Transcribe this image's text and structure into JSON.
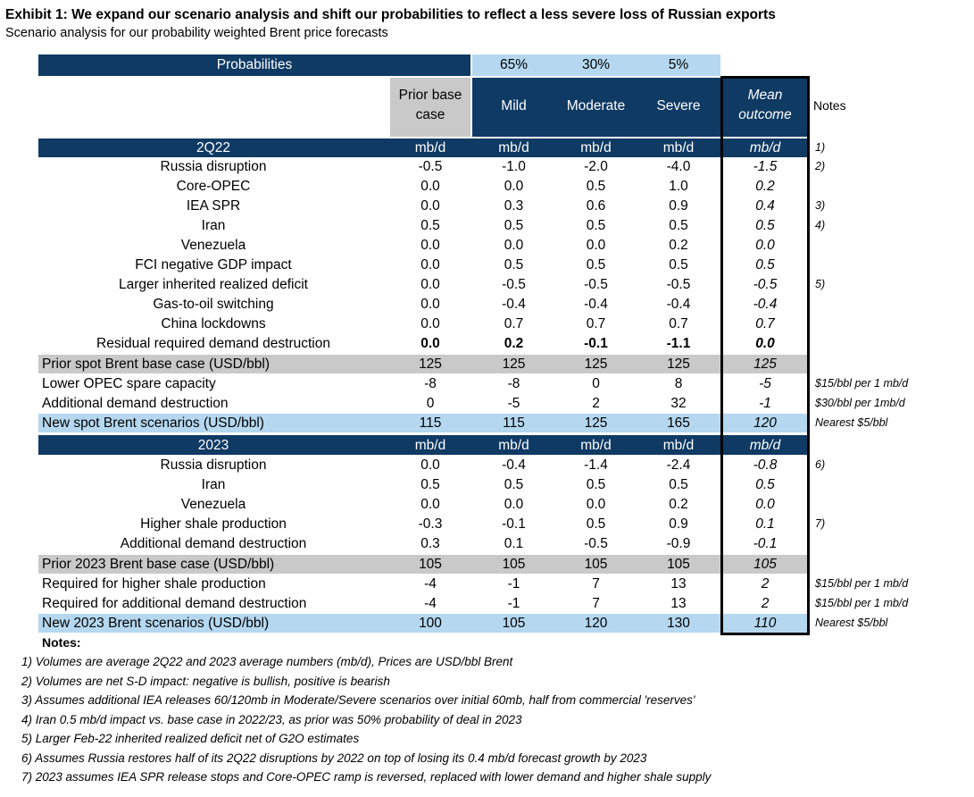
{
  "exhibit": {
    "title": "Exhibit 1: We expand our scenario analysis and shift our probabilities to reflect a less severe loss of Russian exports",
    "subtitle": "Scenario analysis for our probability weighted Brent price forecasts"
  },
  "header": {
    "probabilities_label": "Probabilities",
    "probs": [
      "65%",
      "30%",
      "5%"
    ],
    "prior_base_line1": "Prior base",
    "prior_base_line2": "case",
    "mild": "Mild",
    "moderate": "Moderate",
    "severe": "Severe",
    "mean_line1": "Mean",
    "mean_line2": "outcome",
    "notes": "Notes"
  },
  "section_2q22": {
    "label": "2Q22",
    "units": [
      "mb/d",
      "mb/d",
      "mb/d",
      "mb/d",
      "mb/d"
    ],
    "note": "1)",
    "rows": [
      {
        "label": "Russia disruption",
        "values": [
          "-0.5",
          "-1.0",
          "-2.0",
          "-4.0",
          "-1.5"
        ],
        "note": "2)"
      },
      {
        "label": "Core-OPEC",
        "values": [
          "0.0",
          "0.0",
          "0.5",
          "1.0",
          "0.2"
        ],
        "note": ""
      },
      {
        "label": "IEA SPR",
        "values": [
          "0.0",
          "0.3",
          "0.6",
          "0.9",
          "0.4"
        ],
        "note": "3)"
      },
      {
        "label": "Iran",
        "values": [
          "0.5",
          "0.5",
          "0.5",
          "0.5",
          "0.5"
        ],
        "note": "4)"
      },
      {
        "label": "Venezuela",
        "values": [
          "0.0",
          "0.0",
          "0.0",
          "0.2",
          "0.0"
        ],
        "note": ""
      },
      {
        "label": "FCI negative GDP impact",
        "values": [
          "0.0",
          "0.5",
          "0.5",
          "0.5",
          "0.5"
        ],
        "note": ""
      },
      {
        "label": "Larger inherited realized deficit",
        "values": [
          "0.0",
          "-0.5",
          "-0.5",
          "-0.5",
          "-0.5"
        ],
        "note": "5)"
      },
      {
        "label": "Gas-to-oil switching",
        "values": [
          "0.0",
          "-0.4",
          "-0.4",
          "-0.4",
          "-0.4"
        ],
        "note": ""
      },
      {
        "label": "China lockdowns",
        "values": [
          "0.0",
          "0.7",
          "0.7",
          "0.7",
          "0.7"
        ],
        "note": ""
      },
      {
        "label": "Residual required demand destruction",
        "values": [
          "0.0",
          "0.2",
          "-0.1",
          "-1.1",
          "0.0"
        ],
        "note": ""
      }
    ],
    "prior_spot": {
      "label": "Prior spot Brent base case (USD/bbl)",
      "values": [
        "125",
        "125",
        "125",
        "125",
        "125"
      ]
    },
    "lower_opec": {
      "label": "Lower OPEC spare capacity",
      "values": [
        "-8",
        "-8",
        "0",
        "8",
        "-5"
      ],
      "note": "$15/bbl per 1 mb/d"
    },
    "add_demand": {
      "label": "Additional demand destruction",
      "values": [
        "0",
        "-5",
        "2",
        "32",
        "-1"
      ],
      "note": "$30/bbl per 1mb/d"
    },
    "new_spot": {
      "label": "New spot Brent scenarios (USD/bbl)",
      "values": [
        "115",
        "115",
        "125",
        "165",
        "120"
      ],
      "note": "Nearest $5/bbl"
    }
  },
  "section_2023": {
    "label": "2023",
    "units": [
      "mb/d",
      "mb/d",
      "mb/d",
      "mb/d",
      "mb/d"
    ],
    "rows": [
      {
        "label": "Russia disruption",
        "values": [
          "0.0",
          "-0.4",
          "-1.4",
          "-2.4",
          "-0.8"
        ],
        "note": "6)"
      },
      {
        "label": "Iran",
        "values": [
          "0.5",
          "0.5",
          "0.5",
          "0.5",
          "0.5"
        ],
        "note": ""
      },
      {
        "label": "Venezuela",
        "values": [
          "0.0",
          "0.0",
          "0.0",
          "0.2",
          "0.0"
        ],
        "note": ""
      },
      {
        "label": "Higher shale production",
        "values": [
          "-0.3",
          "-0.1",
          "0.5",
          "0.9",
          "0.1"
        ],
        "note": "7)"
      },
      {
        "label": "Additional demand destruction",
        "values": [
          "0.3",
          "0.1",
          "-0.5",
          "-0.9",
          "-0.1"
        ],
        "note": ""
      }
    ],
    "prior_base": {
      "label": "Prior 2023 Brent base case (USD/bbl)",
      "values": [
        "105",
        "105",
        "105",
        "105",
        "105"
      ]
    },
    "req_shale": {
      "label": "Required for higher shale production",
      "values": [
        "-4",
        "-1",
        "7",
        "13",
        "2"
      ],
      "note": "$15/bbl per 1 mb/d"
    },
    "req_demand": {
      "label": "Required for additional demand destruction",
      "values": [
        "-4",
        "-1",
        "7",
        "13",
        "2"
      ],
      "note": "$15/bbl per 1 mb/d"
    },
    "new_2023": {
      "label": "New 2023 Brent scenarios (USD/bbl)",
      "values": [
        "100",
        "105",
        "120",
        "130",
        "110"
      ],
      "note": "Nearest $5/bbl"
    }
  },
  "footnotes": {
    "heading": "Notes:",
    "items": [
      "1)  Volumes are average 2Q22 and 2023 average numbers (mb/d), Prices are USD/bbl Brent",
      "2)  Volumes are net S-D impact: negative is bullish, positive is bearish",
      "3)  Assumes additional IEA releases 60/120mb in Moderate/Severe scenarios over initial 60mb, half from commercial 'reserves'",
      "4)  Iran 0.5 mb/d impact vs. base case in 2022/23, as prior was 50% probability of deal in 2023",
      "5)  Larger Feb-22 inherited realized deficit net of G2O estimates",
      "6)  Assumes Russia restores half of its 2Q22 disruptions by 2022 on top of losing its 0.4 mb/d forecast growth by 2023",
      "7)  2023 assumes IEA SPR release stops and Core-OPEC ramp is reversed, replaced with lower demand and higher shale supply"
    ]
  }
}
